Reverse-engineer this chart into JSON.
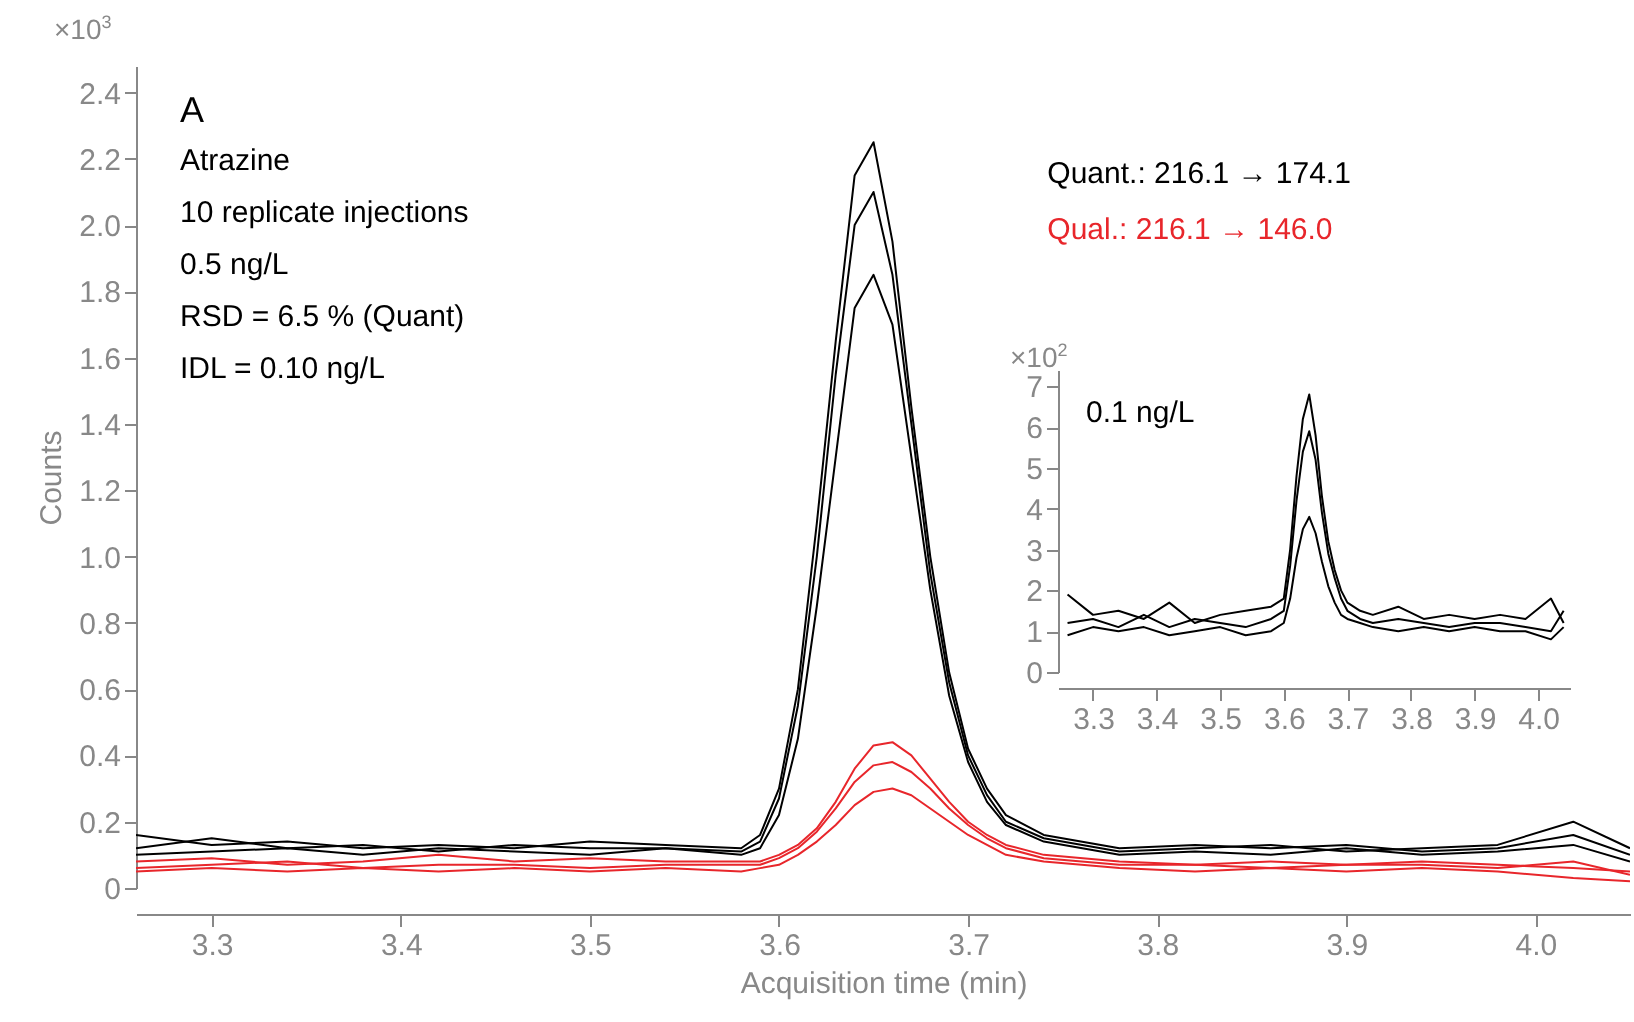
{
  "chart_data": [
    {
      "type": "line",
      "xlabel": "Acquisition time (min)",
      "ylabel": "Counts",
      "annotations": [
        "×10$^{3}$",
        "A",
        "Atrazine",
        "10 replicate injections",
        "0.5 ng/L",
        "RSD = 6.5 % (Quant)",
        "IDL = 0.10 ng/L"
      ],
      "x": [
        3.26,
        3.3,
        3.34,
        3.38,
        3.42,
        3.46,
        3.5,
        3.54,
        3.58,
        3.59,
        3.6,
        3.61,
        3.62,
        3.63,
        3.64,
        3.65,
        3.66,
        3.67,
        3.68,
        3.69,
        3.7,
        3.71,
        3.72,
        3.74,
        3.78,
        3.82,
        3.86,
        3.9,
        3.94,
        3.98,
        4.02,
        4.05
      ],
      "series": [
        {
          "name": "Quant.: 216.1 → 174.1",
          "color": "#000000",
          "values": [
            0.16,
            0.13,
            0.14,
            0.12,
            0.13,
            0.12,
            0.14,
            0.13,
            0.12,
            0.16,
            0.3,
            0.6,
            1.1,
            1.65,
            2.15,
            2.25,
            1.95,
            1.45,
            1.0,
            0.65,
            0.42,
            0.3,
            0.22,
            0.16,
            0.12,
            0.13,
            0.12,
            0.13,
            0.11,
            0.12,
            0.16,
            0.1
          ]
        },
        {
          "color": "#000000",
          "values": [
            0.12,
            0.15,
            0.12,
            0.13,
            0.11,
            0.13,
            0.12,
            0.12,
            0.11,
            0.14,
            0.27,
            0.55,
            1.0,
            1.55,
            2.0,
            2.1,
            1.85,
            1.4,
            0.95,
            0.62,
            0.4,
            0.28,
            0.2,
            0.15,
            0.11,
            0.12,
            0.13,
            0.11,
            0.12,
            0.13,
            0.2,
            0.12
          ]
        },
        {
          "color": "#000000",
          "values": [
            0.1,
            0.11,
            0.12,
            0.1,
            0.12,
            0.11,
            0.1,
            0.12,
            0.1,
            0.12,
            0.22,
            0.45,
            0.85,
            1.3,
            1.75,
            1.85,
            1.7,
            1.3,
            0.9,
            0.58,
            0.38,
            0.26,
            0.19,
            0.14,
            0.1,
            0.11,
            0.1,
            0.12,
            0.1,
            0.11,
            0.13,
            0.08
          ]
        },
        {
          "name": "Qual.: 216.1 → 146.0",
          "color": "#e8262b",
          "values": [
            0.08,
            0.09,
            0.07,
            0.08,
            0.1,
            0.08,
            0.09,
            0.08,
            0.08,
            0.08,
            0.1,
            0.13,
            0.18,
            0.26,
            0.36,
            0.43,
            0.44,
            0.4,
            0.33,
            0.26,
            0.2,
            0.16,
            0.13,
            0.1,
            0.08,
            0.07,
            0.08,
            0.07,
            0.08,
            0.07,
            0.06,
            0.05
          ]
        },
        {
          "color": "#e8262b",
          "values": [
            0.06,
            0.07,
            0.08,
            0.06,
            0.07,
            0.07,
            0.06,
            0.07,
            0.07,
            0.07,
            0.09,
            0.12,
            0.17,
            0.24,
            0.32,
            0.37,
            0.38,
            0.35,
            0.3,
            0.24,
            0.19,
            0.15,
            0.12,
            0.09,
            0.07,
            0.07,
            0.06,
            0.07,
            0.07,
            0.06,
            0.08,
            0.04
          ]
        },
        {
          "color": "#e8262b",
          "values": [
            0.05,
            0.06,
            0.05,
            0.06,
            0.05,
            0.06,
            0.05,
            0.06,
            0.05,
            0.06,
            0.07,
            0.1,
            0.14,
            0.19,
            0.25,
            0.29,
            0.3,
            0.28,
            0.24,
            0.2,
            0.16,
            0.13,
            0.1,
            0.08,
            0.06,
            0.05,
            0.06,
            0.05,
            0.06,
            0.05,
            0.03,
            0.02
          ]
        }
      ],
      "xlim": [
        3.26,
        4.05
      ],
      "xticks": [
        3.3,
        3.4,
        3.5,
        3.6,
        3.7,
        3.8,
        3.9,
        {
          "value": 4,
          "label": "4.0"
        }
      ],
      "ylim": [
        0,
        2.48
      ],
      "yticks": [
        0,
        0.2,
        0.4,
        0.6,
        0.8,
        {
          "value": 1,
          "label": "1.0"
        },
        1.2,
        1.4,
        1.6,
        1.8,
        {
          "value": 2,
          "label": "2.0"
        },
        2.2,
        2.4
      ],
      "grid": false,
      "legend": "top right",
      "marker": "none",
      "line_style": "solid"
    },
    {
      "type": "line",
      "annotations": [
        "×10$^{2}$",
        "0.1 ng/L"
      ],
      "x": [
        3.26,
        3.3,
        3.34,
        3.38,
        3.42,
        3.46,
        3.5,
        3.54,
        3.58,
        3.6,
        3.61,
        3.62,
        3.63,
        3.64,
        3.65,
        3.66,
        3.67,
        3.68,
        3.69,
        3.7,
        3.72,
        3.74,
        3.78,
        3.82,
        3.86,
        3.9,
        3.94,
        3.98,
        4.02,
        4.04
      ],
      "series": [
        {
          "color": "#000000",
          "values": [
            1.9,
            1.4,
            1.5,
            1.3,
            1.7,
            1.2,
            1.4,
            1.5,
            1.6,
            1.8,
            3.0,
            4.8,
            6.2,
            6.8,
            5.8,
            4.3,
            3.2,
            2.5,
            2.0,
            1.7,
            1.5,
            1.4,
            1.6,
            1.3,
            1.4,
            1.3,
            1.4,
            1.3,
            1.8,
            1.2
          ]
        },
        {
          "color": "#000000",
          "values": [
            1.2,
            1.3,
            1.1,
            1.4,
            1.1,
            1.3,
            1.2,
            1.1,
            1.3,
            1.5,
            2.6,
            4.2,
            5.4,
            5.9,
            5.2,
            3.9,
            2.9,
            2.3,
            1.8,
            1.5,
            1.3,
            1.2,
            1.3,
            1.2,
            1.1,
            1.2,
            1.2,
            1.1,
            1.0,
            1.5
          ]
        },
        {
          "color": "#000000",
          "values": [
            0.9,
            1.1,
            1.0,
            1.1,
            0.9,
            1.0,
            1.1,
            0.9,
            1.0,
            1.2,
            1.8,
            2.8,
            3.5,
            3.8,
            3.4,
            2.7,
            2.1,
            1.7,
            1.4,
            1.3,
            1.2,
            1.1,
            1.0,
            1.1,
            1.0,
            1.1,
            1.0,
            1.0,
            0.8,
            1.1
          ]
        }
      ],
      "xlim": [
        3.245,
        4.05
      ],
      "xticks": [
        3.3,
        3.4,
        3.5,
        3.6,
        3.7,
        3.8,
        3.9,
        {
          "value": 4,
          "label": "4.0"
        }
      ],
      "ylim": [
        0,
        7.4
      ],
      "yticks": [
        0,
        1,
        2,
        3,
        4,
        5,
        6,
        7
      ],
      "grid": false,
      "marker": "none",
      "line_style": "solid"
    }
  ]
}
